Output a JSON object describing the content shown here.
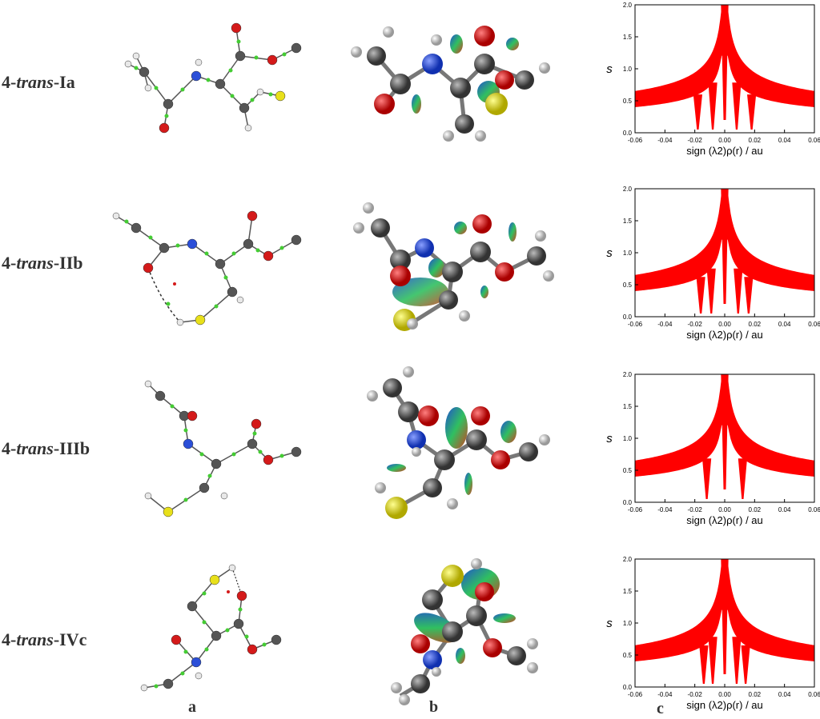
{
  "rows": [
    {
      "prefix": "4-",
      "italic": "trans",
      "suffix": "-Ia"
    },
    {
      "prefix": "4-",
      "italic": "trans",
      "suffix": "-IIb"
    },
    {
      "prefix": "4-",
      "italic": "trans",
      "suffix": "-IIIb"
    },
    {
      "prefix": "4-",
      "italic": "trans",
      "suffix": "-IVc"
    }
  ],
  "columns": {
    "a": "a",
    "b": "b",
    "c": "c"
  },
  "colors": {
    "carbon": "#555555",
    "oxygen": "#d41a1a",
    "nitrogen": "#2b4fd8",
    "sulfur": "#e8e01a",
    "hydrogen": "#e8e8e8",
    "bcp": "#44cc33",
    "plot_red": "#ff0000"
  },
  "chart_data": [
    {
      "type": "scatter",
      "xlabel": "sign (λ2)ρ(r) / au",
      "ylabel": "s",
      "xlim": [
        -0.06,
        0.06
      ],
      "ylim": [
        0.0,
        2.0
      ],
      "xticks": [
        "-0.06",
        "-0.04",
        "-0.02",
        "0.00",
        "0.02",
        "0.04",
        "0.06"
      ],
      "yticks": [
        "0.0",
        "0.5",
        "1.0",
        "1.5",
        "2.0"
      ],
      "spikes_neg": [
        -0.018,
        -0.008
      ],
      "spikes_pos": [
        0.008,
        0.018
      ]
    },
    {
      "type": "scatter",
      "xlabel": "sign (λ2)ρ(r) / au",
      "ylabel": "s",
      "xlim": [
        -0.06,
        0.06
      ],
      "ylim": [
        0.0,
        2.0
      ],
      "xticks": [
        "-0.06",
        "-0.04",
        "-0.02",
        "0.00",
        "0.02",
        "0.04",
        "0.06"
      ],
      "yticks": [
        "0.0",
        "0.5",
        "1.0",
        "1.5",
        "2.0"
      ],
      "spikes_neg": [
        -0.016,
        -0.009
      ],
      "spikes_pos": [
        0.009,
        0.016
      ]
    },
    {
      "type": "scatter",
      "xlabel": "sign (λ2)ρ(r) / au",
      "ylabel": "s",
      "xlim": [
        -0.06,
        0.06
      ],
      "ylim": [
        0.0,
        2.0
      ],
      "xticks": [
        "-0.06",
        "-0.04",
        "-0.02",
        "0.00",
        "0.02",
        "0.04",
        "0.06"
      ],
      "yticks": [
        "0.0",
        "0.5",
        "1.0",
        "1.5",
        "2.0"
      ],
      "spikes_neg": [
        -0.012
      ],
      "spikes_pos": [
        0.012
      ]
    },
    {
      "type": "scatter",
      "xlabel": "sign (λ2)ρ(r) / au",
      "ylabel": "s",
      "xlim": [
        -0.06,
        0.06
      ],
      "ylim": [
        0.0,
        2.0
      ],
      "xticks": [
        "-0.06",
        "-0.04",
        "-0.02",
        "0.00",
        "0.02",
        "0.04",
        "0.06"
      ],
      "yticks": [
        "0.0",
        "0.5",
        "1.0",
        "1.5",
        "2.0"
      ],
      "spikes_neg": [
        -0.014,
        -0.008
      ],
      "spikes_pos": [
        0.008,
        0.014
      ]
    }
  ]
}
